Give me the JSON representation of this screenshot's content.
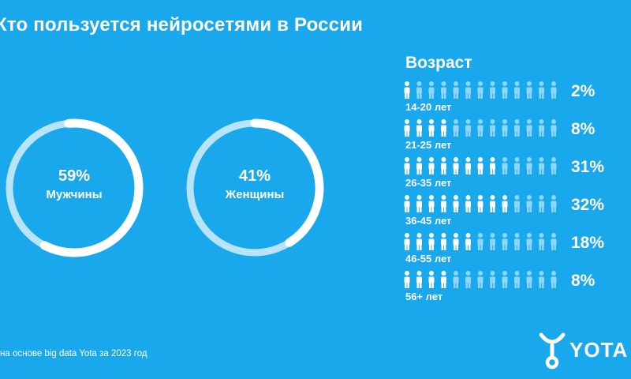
{
  "title": "Кто пользуется нейросетями в России",
  "source_note": "на основе big data Yota за 2023 год",
  "logo_text": "YOTA",
  "colors": {
    "background": "#19a8ec",
    "foreground": "#ffffff",
    "icon_inactive": "#8fd6f8",
    "ring_track": "#b8e4fa"
  },
  "chart_data": [
    {
      "type": "pie",
      "segments": [
        {
          "label": "Мужчины",
          "value": 59,
          "display": "59%"
        },
        {
          "label": "Женщины",
          "value": 41,
          "display": "41%"
        }
      ]
    },
    {
      "type": "bar",
      "title": "Возраст",
      "categories": [
        "14-20 лет",
        "21-25 лет",
        "26-35 лет",
        "36-45 лет",
        "46-55 лет",
        "56+ лет"
      ],
      "values": [
        2,
        8,
        31,
        32,
        18,
        8
      ],
      "display": [
        "2%",
        "8%",
        "31%",
        "32%",
        "18%",
        "8%"
      ],
      "highlighted_icons": [
        1,
        4,
        8,
        9,
        6,
        4
      ],
      "icons_per_row": 13
    }
  ]
}
